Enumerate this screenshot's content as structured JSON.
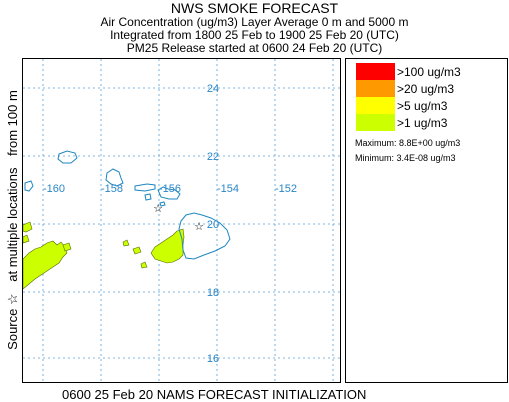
{
  "header": {
    "title": "NWS SMOKE FORECAST",
    "line1": "Air Concentration (ug/m3) Layer Average    0 m  and  5000 m",
    "line2": "Integrated from 1800 25 Feb to 1900 25 Feb 20 (UTC)",
    "line3": "PM25 Release started at 0600 24 Feb 20 (UTC)"
  },
  "side_label": {
    "source": "Source ☆",
    "locations": "at multiple locations",
    "height": "from   100 m"
  },
  "footer": "0600 25 Feb 20 NAMS FORECAST INITIALIZATION",
  "map": {
    "lat_labels": [
      "24",
      "22",
      "20",
      "18",
      "16"
    ],
    "lon_labels": [
      "-160",
      "-158",
      "-156",
      "-154",
      "-152"
    ],
    "grid_color": "#5aa0d8",
    "coast_color": "#1e86c0",
    "label_color": "#2a86c6",
    "source_marker": "star-icon"
  },
  "legend": {
    "items": [
      {
        "label": ">100 ug/m3",
        "color": "#ff0000"
      },
      {
        "label": ">20 ug/m3",
        "color": "#ff9900"
      },
      {
        "label": ">5 ug/m3",
        "color": "#ffff00"
      },
      {
        "label": ">1 ug/m3",
        "color": "#ccff00"
      }
    ],
    "maximum": "Maximum: 8.8E+00 ug/m3",
    "minimum": "Minimum: 3.4E-08 ug/m3"
  }
}
